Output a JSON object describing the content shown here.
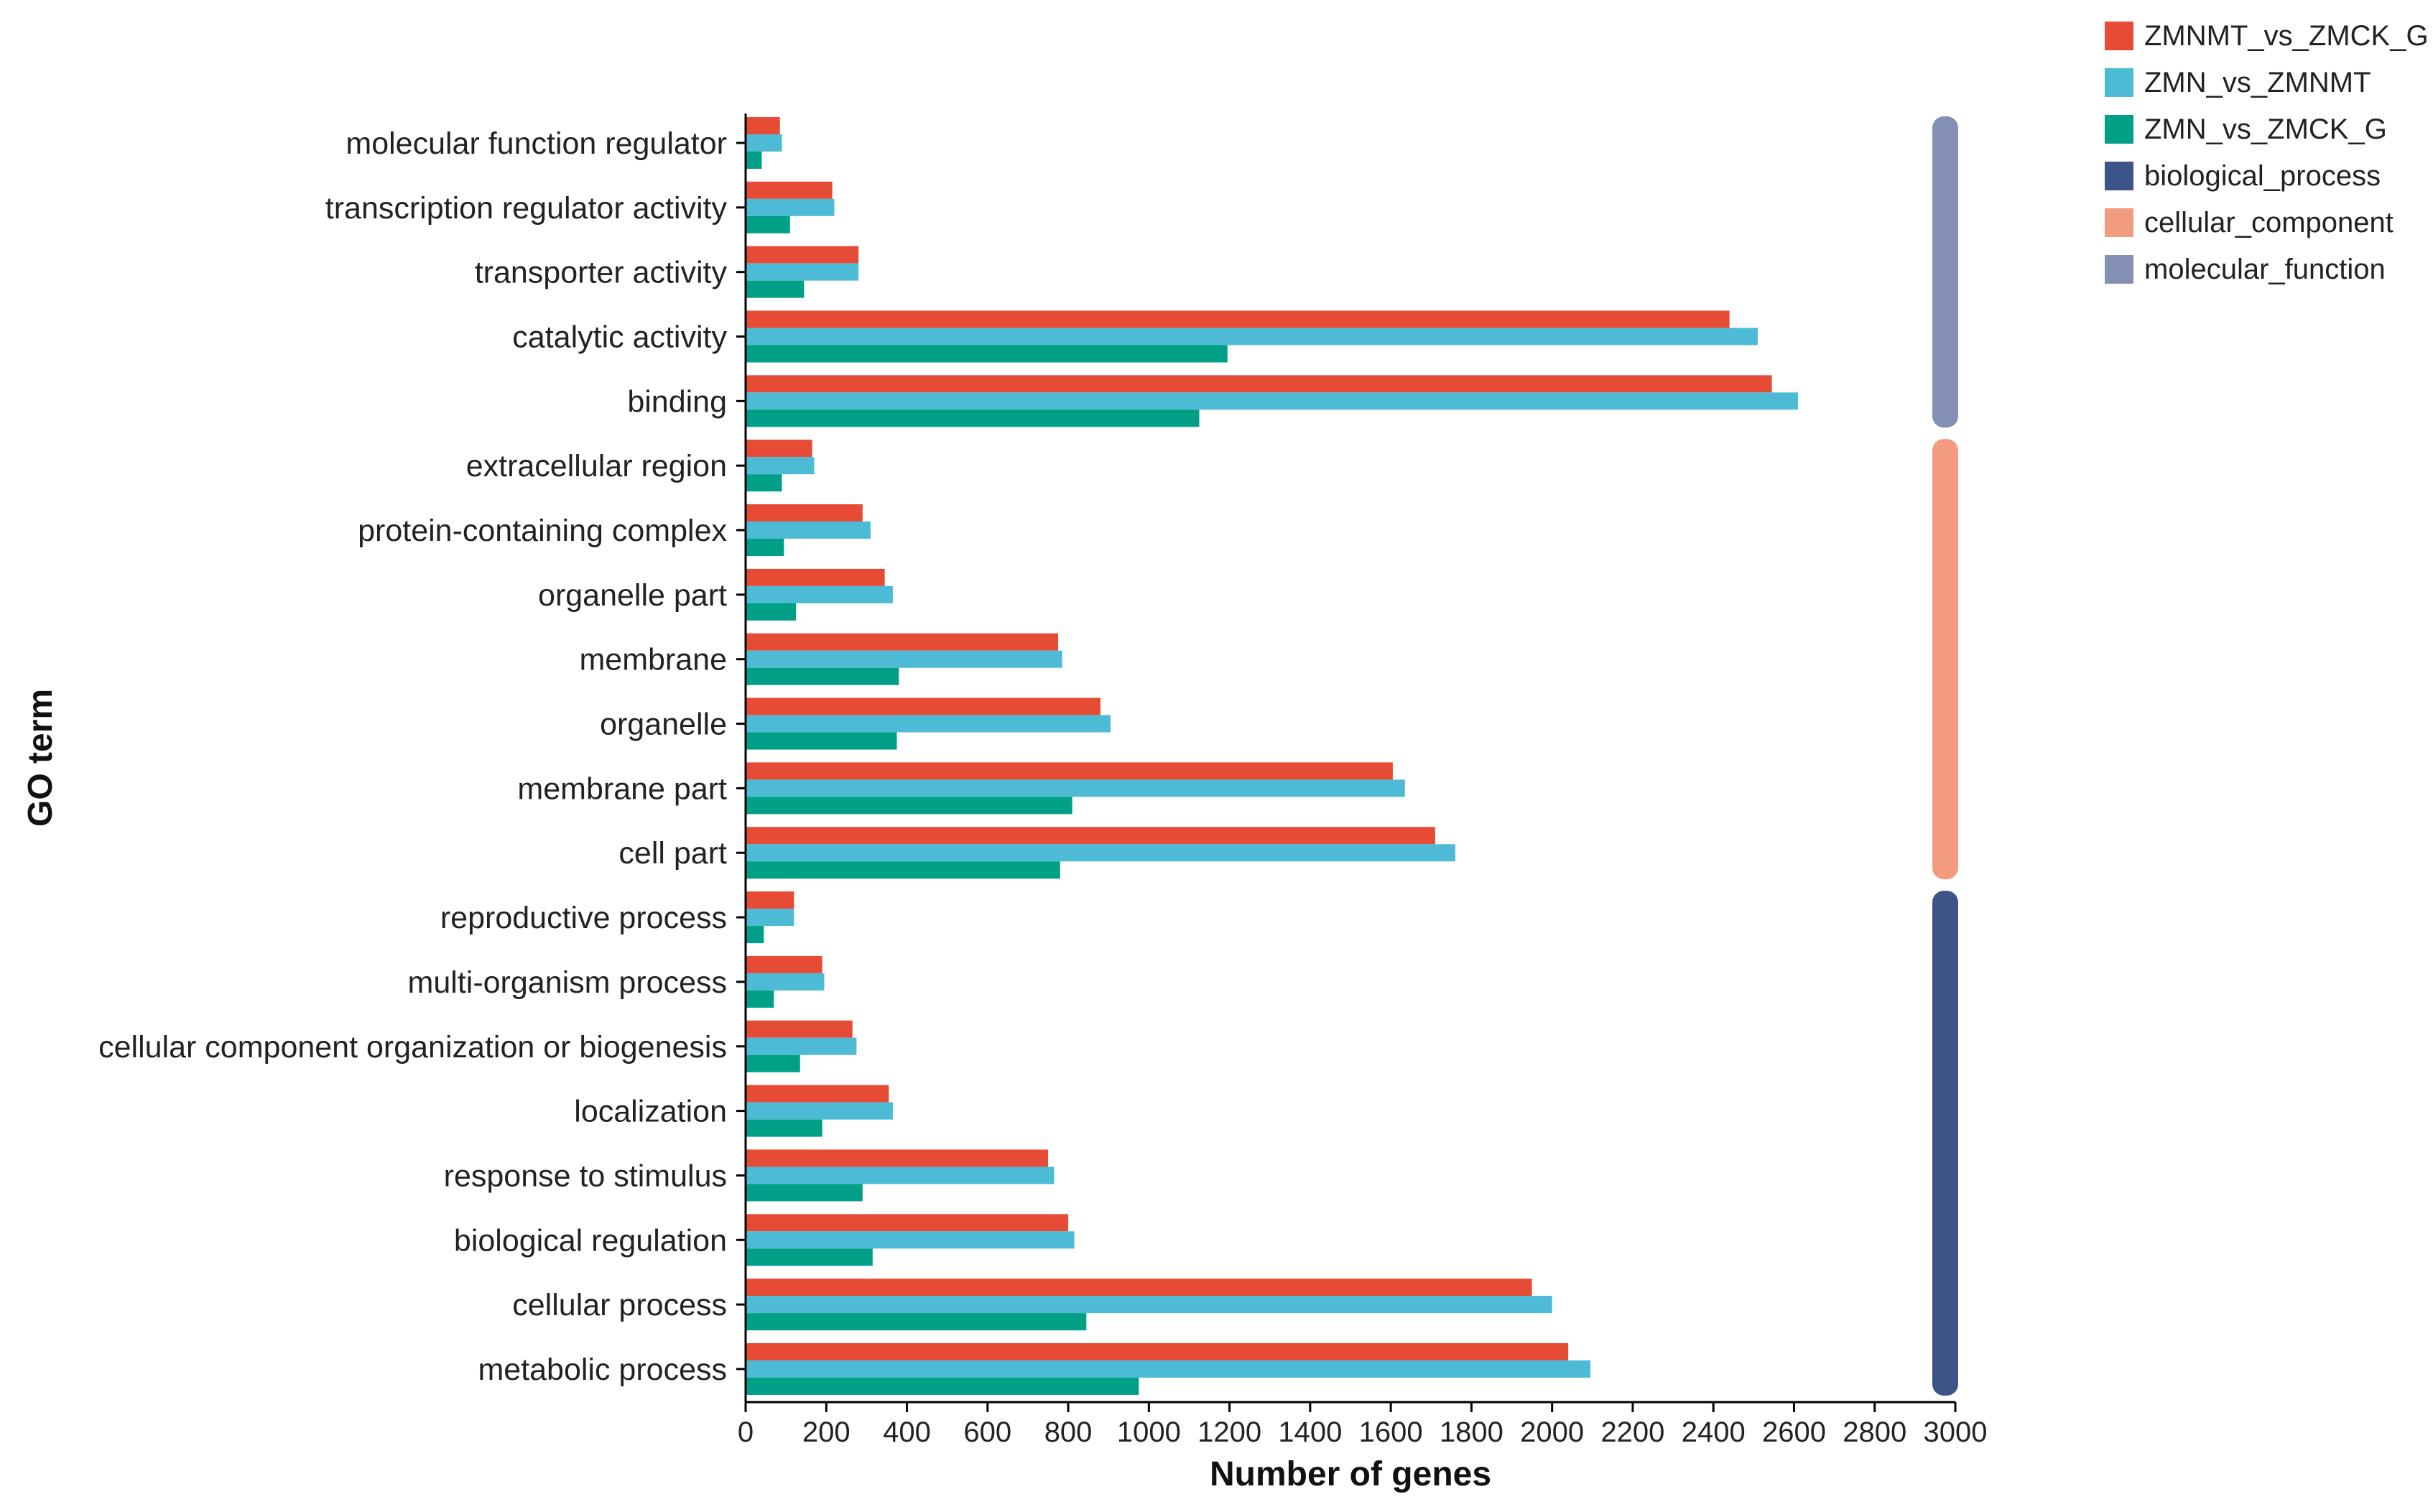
{
  "chart_data": {
    "type": "bar",
    "orientation": "horizontal",
    "xlabel": "Number of genes",
    "ylabel": "GO term",
    "xlim": [
      0,
      3000
    ],
    "xticks": [
      0,
      200,
      400,
      600,
      800,
      1000,
      1200,
      1400,
      1600,
      1800,
      2000,
      2200,
      2400,
      2600,
      2800,
      3000
    ],
    "categories": [
      "molecular function regulator",
      "transcription regulator activity",
      "transporter activity",
      "catalytic activity",
      "binding",
      "extracellular region",
      "protein-containing complex",
      "organelle part",
      "membrane",
      "organelle",
      "membrane part",
      "cell part",
      "reproductive process",
      "multi-organism process",
      "cellular component organization or biogenesis",
      "localization",
      "response to stimulus",
      "biological regulation",
      "cellular process",
      "metabolic process"
    ],
    "series": [
      {
        "name": "ZMNMT_vs_ZMCK_G",
        "color": "#e64b35",
        "values": [
          85,
          215,
          280,
          2440,
          2545,
          165,
          290,
          345,
          775,
          880,
          1605,
          1710,
          120,
          190,
          265,
          355,
          750,
          800,
          1950,
          2040
        ]
      },
      {
        "name": "ZMN_vs_ZMNMT",
        "color": "#4dbbd5",
        "values": [
          90,
          220,
          280,
          2510,
          2610,
          170,
          310,
          365,
          785,
          905,
          1635,
          1760,
          120,
          195,
          275,
          365,
          765,
          815,
          2000,
          2095
        ]
      },
      {
        "name": "ZMN_vs_ZMCK_G",
        "color": "#00a087",
        "values": [
          40,
          110,
          145,
          1195,
          1125,
          90,
          95,
          125,
          380,
          375,
          810,
          780,
          45,
          70,
          135,
          190,
          290,
          315,
          845,
          975
        ]
      }
    ],
    "groups": [
      {
        "name": "molecular_function",
        "color": "#8491b4",
        "categories": [
          "molecular function regulator",
          "transcription regulator activity",
          "transporter activity",
          "catalytic activity",
          "binding"
        ]
      },
      {
        "name": "cellular_component",
        "color": "#f39b7f",
        "categories": [
          "extracellular region",
          "protein-containing complex",
          "organelle part",
          "membrane",
          "organelle",
          "membrane part",
          "cell part"
        ]
      },
      {
        "name": "biological_process",
        "color": "#3c5488",
        "categories": [
          "reproductive process",
          "multi-organism process",
          "cellular component organization or biogenesis",
          "localization",
          "response to stimulus",
          "biological regulation",
          "cellular process",
          "metabolic process"
        ]
      }
    ],
    "legend": {
      "placement": "top-right",
      "entries": [
        {
          "label": "ZMNMT_vs_ZMCK_G",
          "color": "#e64b35"
        },
        {
          "label": "ZMN_vs_ZMNMT",
          "color": "#4dbbd5"
        },
        {
          "label": "ZMN_vs_ZMCK_G",
          "color": "#00a087"
        },
        {
          "label": "biological_process",
          "color": "#3c5488"
        },
        {
          "label": "cellular_component",
          "color": "#f39b7f"
        },
        {
          "label": "molecular_function",
          "color": "#8491b4"
        }
      ]
    },
    "grid": false
  }
}
